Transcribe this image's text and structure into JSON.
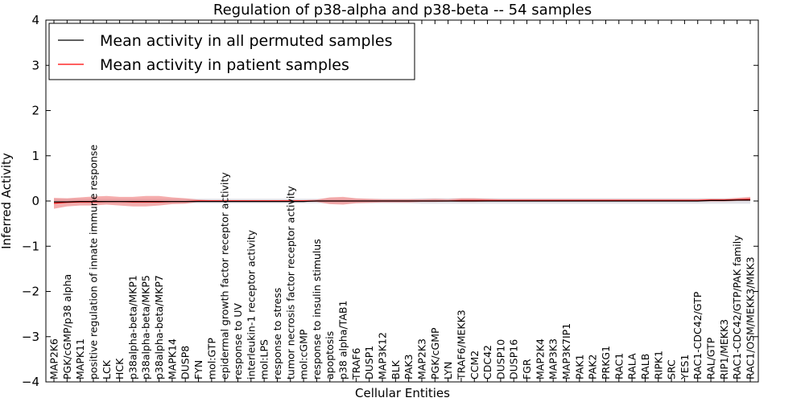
{
  "chart_data": {
    "type": "line",
    "title": "Regulation of p38-alpha and p38-beta -- 54 samples",
    "xlabel": "Cellular Entities",
    "ylabel": "Inferred Activity",
    "ylim": [
      -4,
      4
    ],
    "yticks": [
      "4",
      "3",
      "2",
      "1",
      "0",
      "−1",
      "−2",
      "−3",
      "−4"
    ],
    "ytick_values": [
      4,
      3,
      2,
      1,
      0,
      -1,
      -2,
      -3,
      -4
    ],
    "grid": false,
    "legend_position": "top-left",
    "categories": [
      "MAP2K6",
      "PGK/cGMP/p38 alpha",
      "MAPK11",
      "positive regulation of innate immune response",
      "LCK",
      "HCK",
      "p38alpha-beta/MKP1",
      "p38alpha-beta/MKP5",
      "p38alpha-beta/MKP7",
      "MAPK14",
      "DUSP8",
      "FYN",
      "mol:GTP",
      "epidermal growth factor receptor activity",
      "response to UV",
      "interleukin-1 receptor activity",
      "mol:LPS",
      "response to stress",
      "tumor necrosis factor receptor activity",
      "mol:cGMP",
      "response to insulin stimulus",
      "apoptosis",
      "p38 alpha/TAB1",
      "TRAF6",
      "DUSP1",
      "MAP3K12",
      "BLK",
      "PAK3",
      "MAP2K3",
      "PGK/cGMP",
      "LYN",
      "TRAF6/MEKK3",
      "CCM2",
      "CDC42",
      "DUSP10",
      "DUSP16",
      "FGR",
      "MAP2K4",
      "MAP3K3",
      "MAP3K7IP1",
      "PAK1",
      "PAK2",
      "PRKG1",
      "RAC1",
      "RALA",
      "RALB",
      "RIPK1",
      "SRC",
      "YES1",
      "RAC1-CDC42/GTP",
      "RAL/GTP",
      "RIP1/MEKK3",
      "RAC1-CDC42/GTP/PAK family",
      "RAC1/OSM/MEKK3/MKK3"
    ],
    "series": [
      {
        "name": "Mean activity in all permuted samples",
        "color": "#000000",
        "values": [
          -0.02,
          -0.02,
          -0.01,
          -0.01,
          -0.01,
          -0.01,
          -0.01,
          -0.01,
          -0.01,
          -0.01,
          -0.01,
          -0.01,
          -0.01,
          -0.01,
          -0.01,
          -0.01,
          -0.01,
          -0.01,
          -0.01,
          -0.01,
          0.0,
          0.0,
          0.0,
          0.0,
          0.0,
          0.0,
          0.0,
          0.0,
          0.0,
          0.0,
          0.0,
          0.0,
          0.0,
          0.0,
          0.0,
          0.0,
          0.0,
          0.0,
          0.0,
          0.0,
          0.0,
          0.0,
          0.0,
          0.0,
          0.0,
          0.0,
          0.0,
          0.0,
          0.0,
          0.0,
          0.01,
          0.01,
          0.02,
          0.02
        ],
        "band_low": [
          -0.05,
          -0.05,
          -0.05,
          -0.05,
          -0.05,
          -0.05,
          -0.05,
          -0.05,
          -0.05,
          -0.05,
          -0.05,
          -0.05,
          -0.05,
          -0.05,
          -0.05,
          -0.05,
          -0.05,
          -0.05,
          -0.05,
          -0.05,
          -0.05,
          -0.05,
          -0.05,
          -0.05,
          -0.05,
          -0.05,
          -0.05,
          -0.05,
          -0.06,
          -0.06,
          -0.06,
          -0.06,
          -0.06,
          -0.06,
          -0.06,
          -0.06,
          -0.06,
          -0.06,
          -0.06,
          -0.06,
          -0.06,
          -0.06,
          -0.06,
          -0.06,
          -0.06,
          -0.06,
          -0.06,
          -0.06,
          -0.06,
          -0.06,
          -0.06,
          -0.06,
          -0.06,
          -0.06
        ],
        "band_high": [
          0.05,
          0.05,
          0.05,
          0.05,
          0.05,
          0.05,
          0.05,
          0.05,
          0.05,
          0.05,
          0.05,
          0.05,
          0.05,
          0.05,
          0.05,
          0.05,
          0.05,
          0.05,
          0.05,
          0.05,
          0.05,
          0.05,
          0.05,
          0.05,
          0.05,
          0.05,
          0.05,
          0.05,
          0.06,
          0.06,
          0.06,
          0.06,
          0.06,
          0.06,
          0.06,
          0.06,
          0.06,
          0.06,
          0.06,
          0.06,
          0.06,
          0.06,
          0.06,
          0.06,
          0.06,
          0.06,
          0.06,
          0.06,
          0.06,
          0.06,
          0.06,
          0.06,
          0.06,
          0.06
        ]
      },
      {
        "name": "Mean activity in patient samples",
        "color": "#ff0000",
        "values": [
          -0.05,
          -0.03,
          -0.02,
          -0.02,
          -0.01,
          -0.01,
          -0.02,
          -0.02,
          -0.02,
          -0.01,
          -0.01,
          0.0,
          0.0,
          0.0,
          0.0,
          0.0,
          0.0,
          0.0,
          0.0,
          0.0,
          0.0,
          0.0,
          0.0,
          0.0,
          0.0,
          0.0,
          0.0,
          0.0,
          0.0,
          0.0,
          0.0,
          0.01,
          0.01,
          0.01,
          0.01,
          0.01,
          0.01,
          0.01,
          0.01,
          0.01,
          0.01,
          0.01,
          0.01,
          0.01,
          0.01,
          0.01,
          0.01,
          0.01,
          0.01,
          0.01,
          0.02,
          0.02,
          0.03,
          0.04
        ],
        "band_low": [
          -0.17,
          -0.12,
          -0.1,
          -0.1,
          -0.08,
          -0.1,
          -0.12,
          -0.12,
          -0.1,
          -0.07,
          -0.06,
          -0.02,
          -0.02,
          -0.02,
          -0.02,
          -0.02,
          -0.02,
          -0.02,
          -0.02,
          -0.02,
          -0.02,
          -0.07,
          -0.08,
          -0.05,
          -0.04,
          -0.03,
          -0.03,
          -0.03,
          -0.02,
          -0.02,
          -0.01,
          -0.02,
          -0.02,
          -0.01,
          -0.01,
          -0.01,
          -0.01,
          -0.01,
          -0.01,
          -0.01,
          -0.01,
          -0.01,
          -0.01,
          -0.01,
          -0.01,
          -0.01,
          -0.01,
          -0.01,
          -0.01,
          -0.01,
          -0.01,
          -0.01,
          0.0,
          0.0
        ],
        "band_high": [
          0.07,
          0.06,
          0.08,
          0.1,
          0.11,
          0.09,
          0.09,
          0.11,
          0.11,
          0.08,
          0.06,
          0.03,
          0.02,
          0.02,
          0.02,
          0.02,
          0.02,
          0.02,
          0.02,
          0.02,
          0.03,
          0.08,
          0.09,
          0.06,
          0.05,
          0.04,
          0.04,
          0.04,
          0.04,
          0.05,
          0.04,
          0.06,
          0.06,
          0.05,
          0.04,
          0.04,
          0.04,
          0.04,
          0.04,
          0.04,
          0.04,
          0.04,
          0.04,
          0.04,
          0.04,
          0.04,
          0.04,
          0.04,
          0.04,
          0.04,
          0.05,
          0.05,
          0.07,
          0.09
        ]
      }
    ]
  }
}
